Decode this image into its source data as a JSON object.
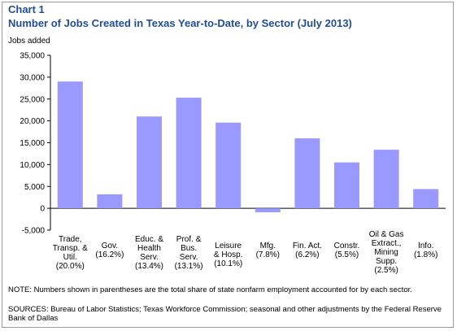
{
  "chart_data": {
    "type": "bar",
    "label": "Chart 1",
    "title": "Number of Jobs Created in Texas Year-to-Date, by Sector (July 2013)",
    "ylabel": "Jobs added",
    "ylim": [
      -5000,
      35000
    ],
    "yticks": [
      "35,000",
      "30,000",
      "25,000",
      "20,000",
      "15,000",
      "10,000",
      "5,000",
      "0",
      "-5,000"
    ],
    "ytick_values": [
      35000,
      30000,
      25000,
      20000,
      15000,
      10000,
      5000,
      0,
      -5000
    ],
    "categories": [
      [
        "Trade,",
        "Transp. &",
        "Util.",
        "(20.0%)"
      ],
      [
        "Gov.",
        "(16.2%)"
      ],
      [
        "Educ. &",
        "Health",
        "Serv.",
        "(13.4%)"
      ],
      [
        "Prof. &",
        "Bus.",
        "Serv.",
        "(13.1%)"
      ],
      [
        "Leisure",
        "& Hosp.",
        "(10.1%)"
      ],
      [
        "Mfg.",
        "(7.8%)"
      ],
      [
        "Fin. Act.",
        "(6.2%)"
      ],
      [
        "Constr.",
        "(5.5%)"
      ],
      [
        "Oil & Gas",
        "Extract.,",
        "Mining",
        "Supp.",
        "(2.5%)"
      ],
      [
        "Info.",
        "(1.8%)"
      ]
    ],
    "values": [
      29000,
      3200,
      21000,
      25300,
      19600,
      -900,
      16000,
      10500,
      13400,
      4400
    ],
    "bar_color": "#9999ff",
    "grid": false,
    "legend": "none"
  },
  "notes": {
    "note": "NOTE: Numbers shown in parentheses are the total share of state nonfarm employment accounted for by each sector.",
    "sources": "SOURCES: Bureau of Labor Statistics; Texas Workforce Commission; seasonal and other adjustments by the Federal Reserve Bank of Dallas"
  }
}
